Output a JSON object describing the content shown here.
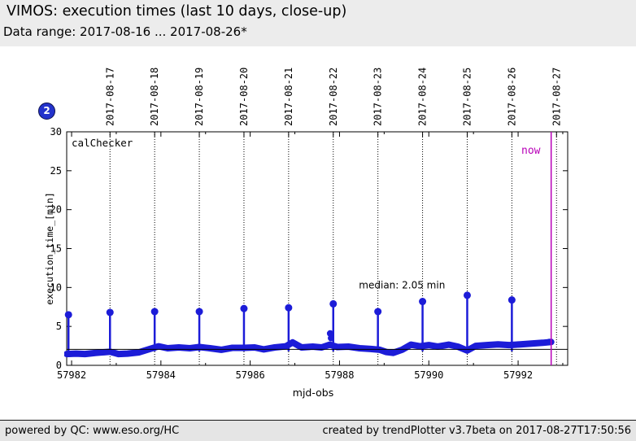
{
  "header": {
    "title": "VIMOS: execution times (last 10 days, close-up)",
    "subtitle": "Data range: 2017-08-16 ... 2017-08-26*"
  },
  "badge": {
    "label": "2"
  },
  "footer": {
    "left": "powered by QC: www.eso.org/HC",
    "right": "created by trendPlotter v3.7beta on 2017-08-27T17:50:56"
  },
  "colors": {
    "data_blue": "#1c1cd8",
    "now_magenta": "#b800b8",
    "median_black": "#000000",
    "frame": "#000000",
    "badge_blue": "#2433cc"
  },
  "chart_data": {
    "type": "scatter",
    "inside_label": "calChecker",
    "now_label": "now",
    "xlabel": "mjd-obs",
    "ylabel": "execution_time_[min]",
    "xlim": [
      57981.89,
      57993.11
    ],
    "ylim": [
      0,
      30
    ],
    "xticks": [
      57982,
      57984,
      57986,
      57988,
      57990,
      57992
    ],
    "xminorticks": [
      57983,
      57985,
      57987,
      57989,
      57991,
      57993
    ],
    "yticks": [
      0,
      5,
      10,
      15,
      20,
      25,
      30
    ],
    "top_axis": {
      "labels": [
        "2017-08-17",
        "2017-08-18",
        "2017-08-19",
        "2017-08-20",
        "2017-08-21",
        "2017-08-22",
        "2017-08-23",
        "2017-08-24",
        "2017-08-25",
        "2017-08-26",
        "2017-08-27"
      ],
      "mjds": [
        57982.86,
        57983.86,
        57984.86,
        57985.86,
        57986.86,
        57987.86,
        57988.86,
        57989.86,
        57990.86,
        57991.86,
        57992.86
      ]
    },
    "median": {
      "value": 2.05,
      "label": "median: 2.05 min",
      "label_x": 57989.4,
      "label_y": 9.9
    },
    "now_mjd": 57992.74,
    "now_label_pos": [
      57992.5,
      27.2
    ],
    "inside_label_pos": [
      57982.0,
      28.1
    ],
    "spikes": [
      [
        57981.93,
        6.5
      ],
      [
        57982.86,
        6.8
      ],
      [
        57983.86,
        6.9
      ],
      [
        57984.86,
        6.9
      ],
      [
        57985.86,
        7.3
      ],
      [
        57986.86,
        7.4
      ],
      [
        57987.86,
        7.9
      ],
      [
        57988.86,
        6.9
      ],
      [
        57989.86,
        8.2
      ],
      [
        57990.86,
        9.0
      ],
      [
        57991.86,
        8.4
      ]
    ],
    "extra_points": [
      [
        57987.79,
        4.1
      ],
      [
        57987.81,
        3.5
      ],
      [
        57992.7,
        3.0
      ]
    ],
    "band": [
      [
        57981.89,
        1.45
      ],
      [
        57982.1,
        1.5
      ],
      [
        57982.3,
        1.45
      ],
      [
        57982.55,
        1.6
      ],
      [
        57982.86,
        1.75
      ],
      [
        57983.05,
        1.45
      ],
      [
        57983.25,
        1.5
      ],
      [
        57983.5,
        1.65
      ],
      [
        57983.75,
        2.1
      ],
      [
        57983.95,
        2.45
      ],
      [
        57984.15,
        2.2
      ],
      [
        57984.4,
        2.3
      ],
      [
        57984.65,
        2.2
      ],
      [
        57984.86,
        2.35
      ],
      [
        57985.1,
        2.2
      ],
      [
        57985.35,
        2.0
      ],
      [
        57985.6,
        2.25
      ],
      [
        57985.86,
        2.25
      ],
      [
        57986.1,
        2.3
      ],
      [
        57986.3,
        2.05
      ],
      [
        57986.55,
        2.3
      ],
      [
        57986.8,
        2.45
      ],
      [
        57986.95,
        2.95
      ],
      [
        57987.15,
        2.3
      ],
      [
        57987.4,
        2.4
      ],
      [
        57987.6,
        2.3
      ],
      [
        57987.78,
        2.65
      ],
      [
        57987.95,
        2.35
      ],
      [
        57988.2,
        2.4
      ],
      [
        57988.45,
        2.2
      ],
      [
        57988.7,
        2.1
      ],
      [
        57988.9,
        2.0
      ],
      [
        57989.05,
        1.7
      ],
      [
        57989.2,
        1.6
      ],
      [
        57989.4,
        2.0
      ],
      [
        57989.6,
        2.65
      ],
      [
        57989.8,
        2.45
      ],
      [
        57990.0,
        2.6
      ],
      [
        57990.2,
        2.4
      ],
      [
        57990.45,
        2.65
      ],
      [
        57990.65,
        2.4
      ],
      [
        57990.86,
        1.9
      ],
      [
        57991.05,
        2.5
      ],
      [
        57991.3,
        2.6
      ],
      [
        57991.55,
        2.7
      ],
      [
        57991.8,
        2.6
      ],
      [
        57992.05,
        2.7
      ],
      [
        57992.3,
        2.8
      ],
      [
        57992.55,
        2.9
      ],
      [
        57992.74,
        3.0
      ]
    ]
  }
}
